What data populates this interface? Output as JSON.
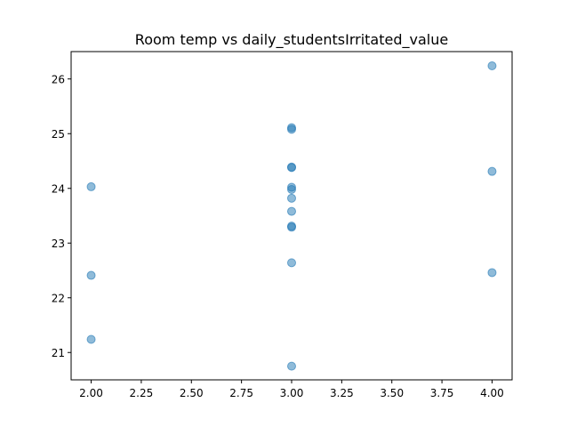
{
  "chart_data": {
    "type": "scatter",
    "title": "Room temp vs daily_studentsIrritated_value",
    "xlabel": "",
    "ylabel": "",
    "xlim": [
      1.9,
      4.1
    ],
    "ylim": [
      20.5,
      26.5
    ],
    "x_ticks": [
      "2.00",
      "2.25",
      "2.50",
      "2.75",
      "3.00",
      "3.25",
      "3.50",
      "3.75",
      "4.00"
    ],
    "y_ticks": [
      "21",
      "22",
      "23",
      "24",
      "25",
      "26"
    ],
    "grid": false,
    "legend": "none",
    "marker_color": "#1f77b4",
    "marker_opacity": 0.5,
    "points": [
      {
        "x": 2,
        "y": 24.03
      },
      {
        "x": 2,
        "y": 22.41
      },
      {
        "x": 2,
        "y": 21.24
      },
      {
        "x": 3,
        "y": 25.11
      },
      {
        "x": 3,
        "y": 25.08
      },
      {
        "x": 3,
        "y": 24.39
      },
      {
        "x": 3,
        "y": 24.38
      },
      {
        "x": 3,
        "y": 24.02
      },
      {
        "x": 3,
        "y": 23.98
      },
      {
        "x": 3,
        "y": 23.82
      },
      {
        "x": 3,
        "y": 23.58
      },
      {
        "x": 3,
        "y": 23.31
      },
      {
        "x": 3,
        "y": 23.29
      },
      {
        "x": 3,
        "y": 22.64
      },
      {
        "x": 3,
        "y": 20.75
      },
      {
        "x": 4,
        "y": 26.24
      },
      {
        "x": 4,
        "y": 24.31
      },
      {
        "x": 4,
        "y": 22.46
      }
    ]
  }
}
